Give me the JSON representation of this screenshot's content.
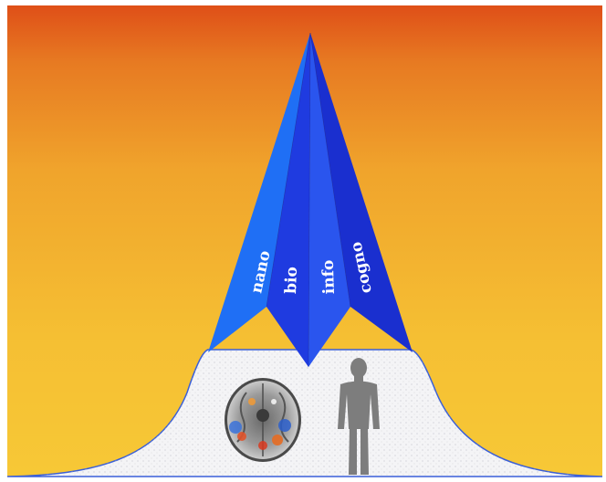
{
  "diagram": {
    "facets": [
      {
        "key": "nano",
        "label": "nano",
        "color": "#1f6ff5"
      },
      {
        "key": "bio",
        "label": "bio",
        "color": "#1f3be0"
      },
      {
        "key": "info",
        "label": "info",
        "color": "#2a55ee"
      },
      {
        "key": "cogno",
        "label": "cogno",
        "color": "#1a2fcf"
      }
    ],
    "icons": [
      "brain-scan-icon",
      "human-figure-icon"
    ],
    "colors": {
      "sky_top": "#e0531a",
      "sky_mid": "#f0a22c",
      "sky_bottom": "#f6c534",
      "ground": "#f4f4f6",
      "outline": "#3a5fd8",
      "figure": "#7d7d7d"
    }
  }
}
